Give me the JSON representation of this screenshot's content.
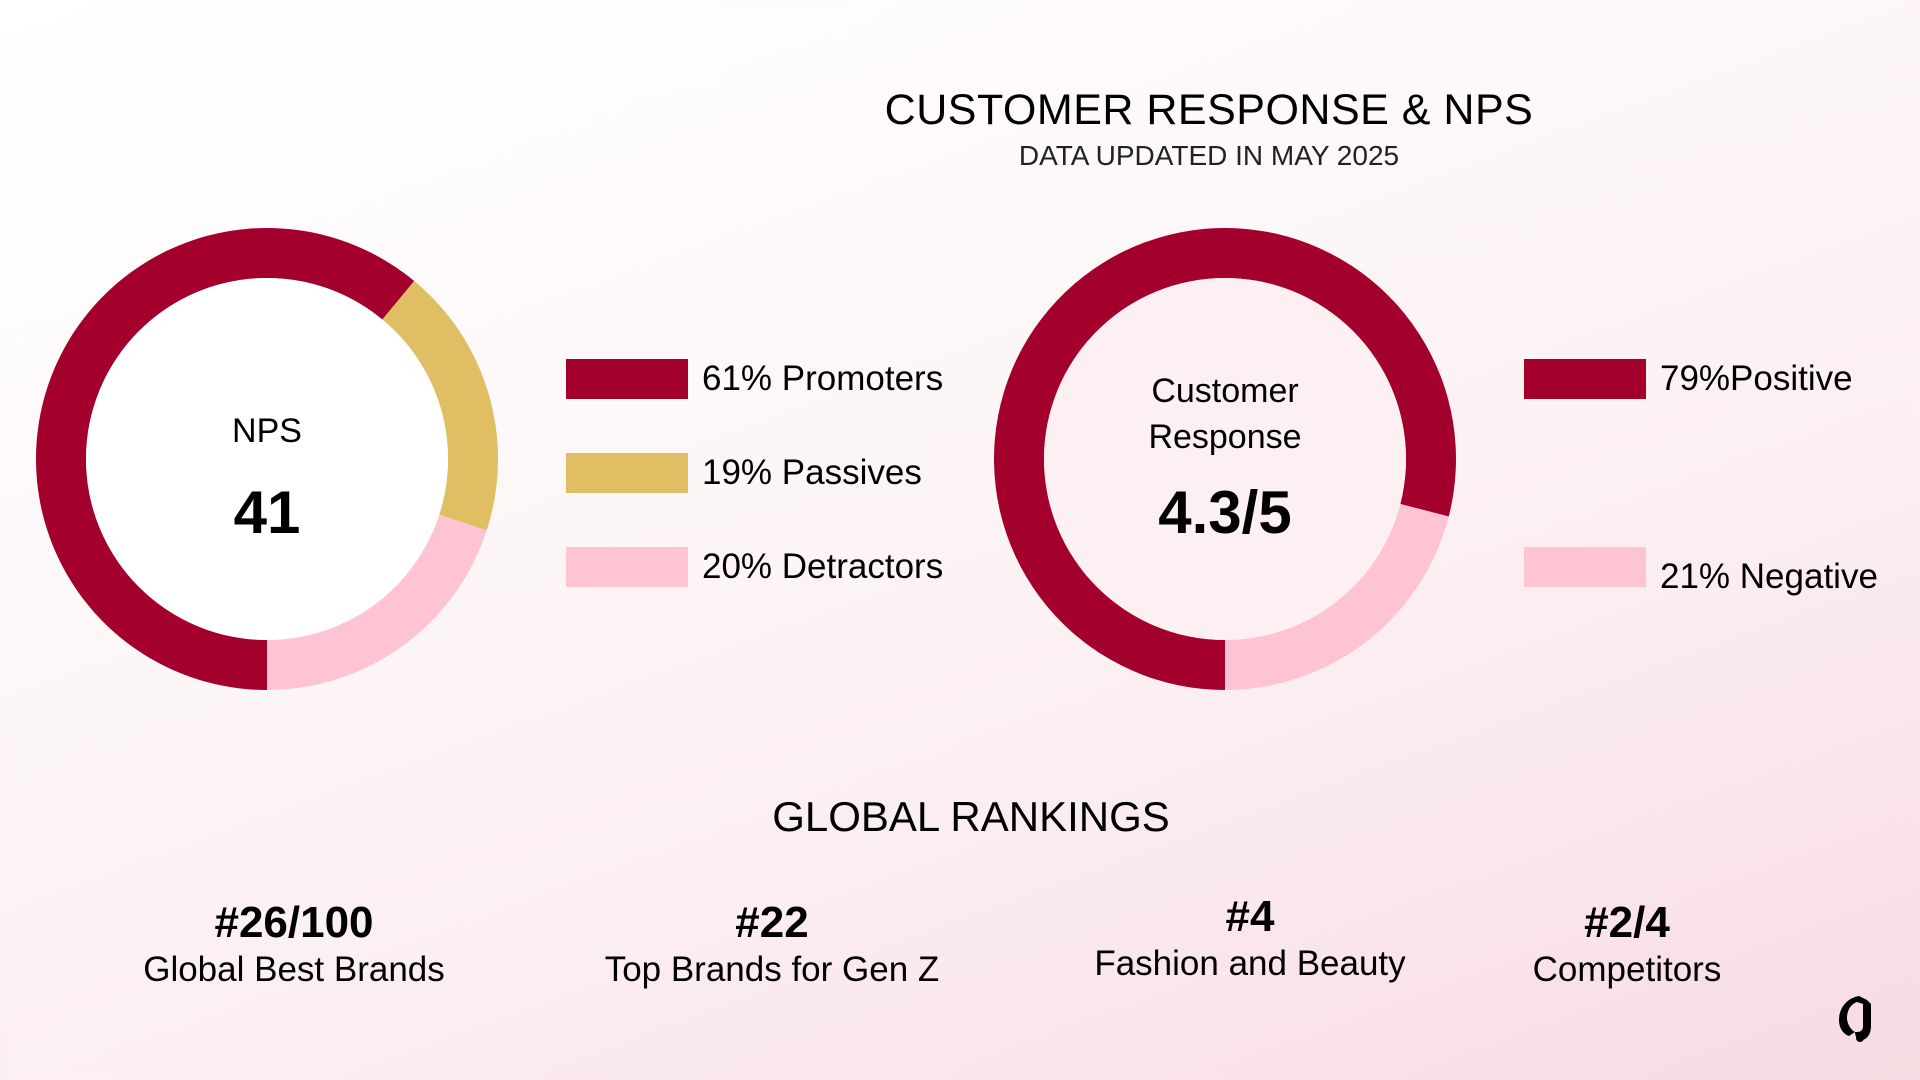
{
  "header": {
    "title": "CUSTOMER RESPONSE & NPS",
    "subtitle": "DATA UPDATED IN MAY 2025"
  },
  "nps": {
    "label": "NPS",
    "value": "41",
    "legend": [
      {
        "label": "61% Promoters",
        "color": "#A3002E"
      },
      {
        "label": "19% Passives",
        "color": "#E0BE64"
      },
      {
        "label": "20% Detractors",
        "color": "#FFC4D3"
      }
    ]
  },
  "customer_response": {
    "label_line1": "Customer",
    "label_line2": "Response",
    "value": "4.3/5",
    "legend": [
      {
        "label": "79%Positive",
        "color": "#A3002E"
      },
      {
        "label": "21% Negative",
        "color": "#FFC4D3"
      }
    ]
  },
  "rankings": {
    "title": "GLOBAL RANKINGS",
    "items": [
      {
        "value": "#26/100",
        "label": "Global Best Brands"
      },
      {
        "value": "#22",
        "label": "Top Brands for Gen Z"
      },
      {
        "value": "#4",
        "label": "Fashion and Beauty"
      },
      {
        "value": "#2/4",
        "label": "Competitors"
      }
    ]
  },
  "logo": {
    "icon": "brand-g-logo-icon"
  },
  "colors": {
    "primary": "#A3002E",
    "gold": "#E0BE64",
    "pink": "#FFC4D3"
  },
  "chart_data": [
    {
      "type": "pie",
      "title": "NPS",
      "center_value": "41",
      "categories": [
        "Promoters",
        "Passives",
        "Detractors"
      ],
      "values": [
        61,
        19,
        20
      ],
      "colors": [
        "#A3002E",
        "#E0BE64",
        "#FFC4D3"
      ],
      "donut": true,
      "legend_position": "right"
    },
    {
      "type": "pie",
      "title": "Customer Response",
      "center_value": "4.3/5",
      "categories": [
        "Positive",
        "Negative"
      ],
      "values": [
        79,
        21
      ],
      "colors": [
        "#A3002E",
        "#FFC4D3"
      ],
      "donut": true,
      "legend_position": "right"
    }
  ]
}
